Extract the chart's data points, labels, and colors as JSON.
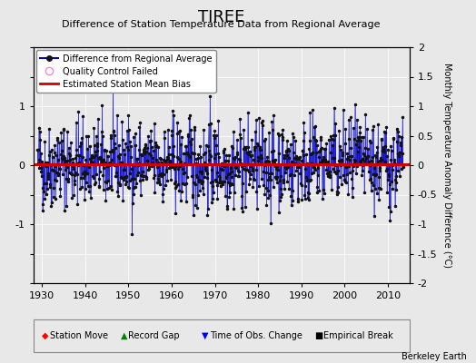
{
  "title": "TIREE",
  "subtitle": "Difference of Station Temperature Data from Regional Average",
  "ylabel": "Monthly Temperature Anomaly Difference (°C)",
  "xlabel_years": [
    1930,
    1940,
    1950,
    1960,
    1970,
    1980,
    1990,
    2000,
    2010
  ],
  "ylim": [
    -2,
    2
  ],
  "xlim": [
    1928,
    2015
  ],
  "mean_bias": 0.02,
  "background_color": "#e8e8e8",
  "plot_bg_color": "#e8e8e8",
  "line_color": "#0000cc",
  "dot_color": "#111111",
  "bias_color": "#cc0000",
  "watermark": "Berkeley Earth",
  "seed": 42,
  "yticks": [
    -2,
    -1.5,
    -1,
    -0.5,
    0,
    0.5,
    1,
    1.5,
    2
  ],
  "ytick_labels_left": [
    "",
    "",
    "-1",
    "",
    "0",
    "",
    "1",
    "",
    ""
  ],
  "ytick_labels_right": [
    "-2",
    "-1.5",
    "-1",
    "-0.5",
    "0",
    "0.5",
    "1",
    "1.5",
    "2"
  ]
}
